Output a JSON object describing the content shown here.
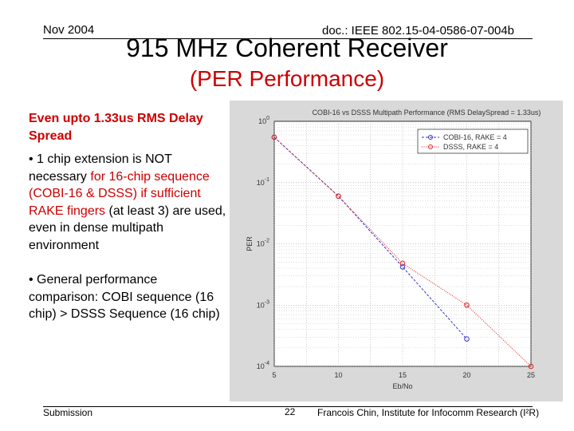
{
  "header": {
    "date": "Nov 2004",
    "doc": "doc.: IEEE 802.15-04-0586-07-004b"
  },
  "slide": {
    "title": "915 MHz Coherent Receiver",
    "subtitle": "(PER Performance)"
  },
  "bullets": {
    "subhead": "Even upto 1.33us RMS Delay Spread",
    "b1_a": "• 1 chip extension is NOT necessary",
    "b1_b": " for 16-chip sequence (COBI-16 & DSSS) ",
    "b1_c": "if sufficient RAKE fingers",
    "b1_d": " (at least 3) are used, even in dense multipath environment",
    "b2": "• General performance comparison: COBI sequence (16 chip) > DSSS Sequence (16 chip)"
  },
  "footer": {
    "submission": "Submission",
    "page": "22",
    "author": "Francois Chin, Institute for Infocomm Research (I²R)"
  },
  "colors": {
    "series_blue": "#3333cc",
    "series_red": "#dd2222",
    "accent_red": "#cc0000"
  },
  "chart_data": {
    "type": "line",
    "title": "COBI-16 vs DSSS Multipath Performance (RMS DelaySpread = 1.33us)",
    "xlabel": "Eb/No",
    "ylabel": "PER",
    "y_scale": "log",
    "xlim": [
      5,
      25
    ],
    "ylim": [
      0.0001,
      1
    ],
    "x_ticks": [
      "5",
      "10",
      "15",
      "20",
      "25"
    ],
    "y_ticks": [
      "10^0",
      "10^-1",
      "10^-2",
      "10^-3",
      "10^-4"
    ],
    "grid": true,
    "legend_position": "top-right",
    "series": [
      {
        "name": "COBI-16, RAKE = 4",
        "color": "#3333cc",
        "marker": "o",
        "x": [
          5,
          10,
          15,
          20
        ],
        "y": [
          0.55,
          0.06,
          0.0042,
          0.00028
        ]
      },
      {
        "name": "DSSS, RAKE = 4",
        "color": "#dd2222",
        "marker": "o",
        "x": [
          5,
          10,
          15,
          20,
          25
        ],
        "y": [
          0.55,
          0.06,
          0.0048,
          0.001,
          0.0001
        ]
      }
    ]
  }
}
